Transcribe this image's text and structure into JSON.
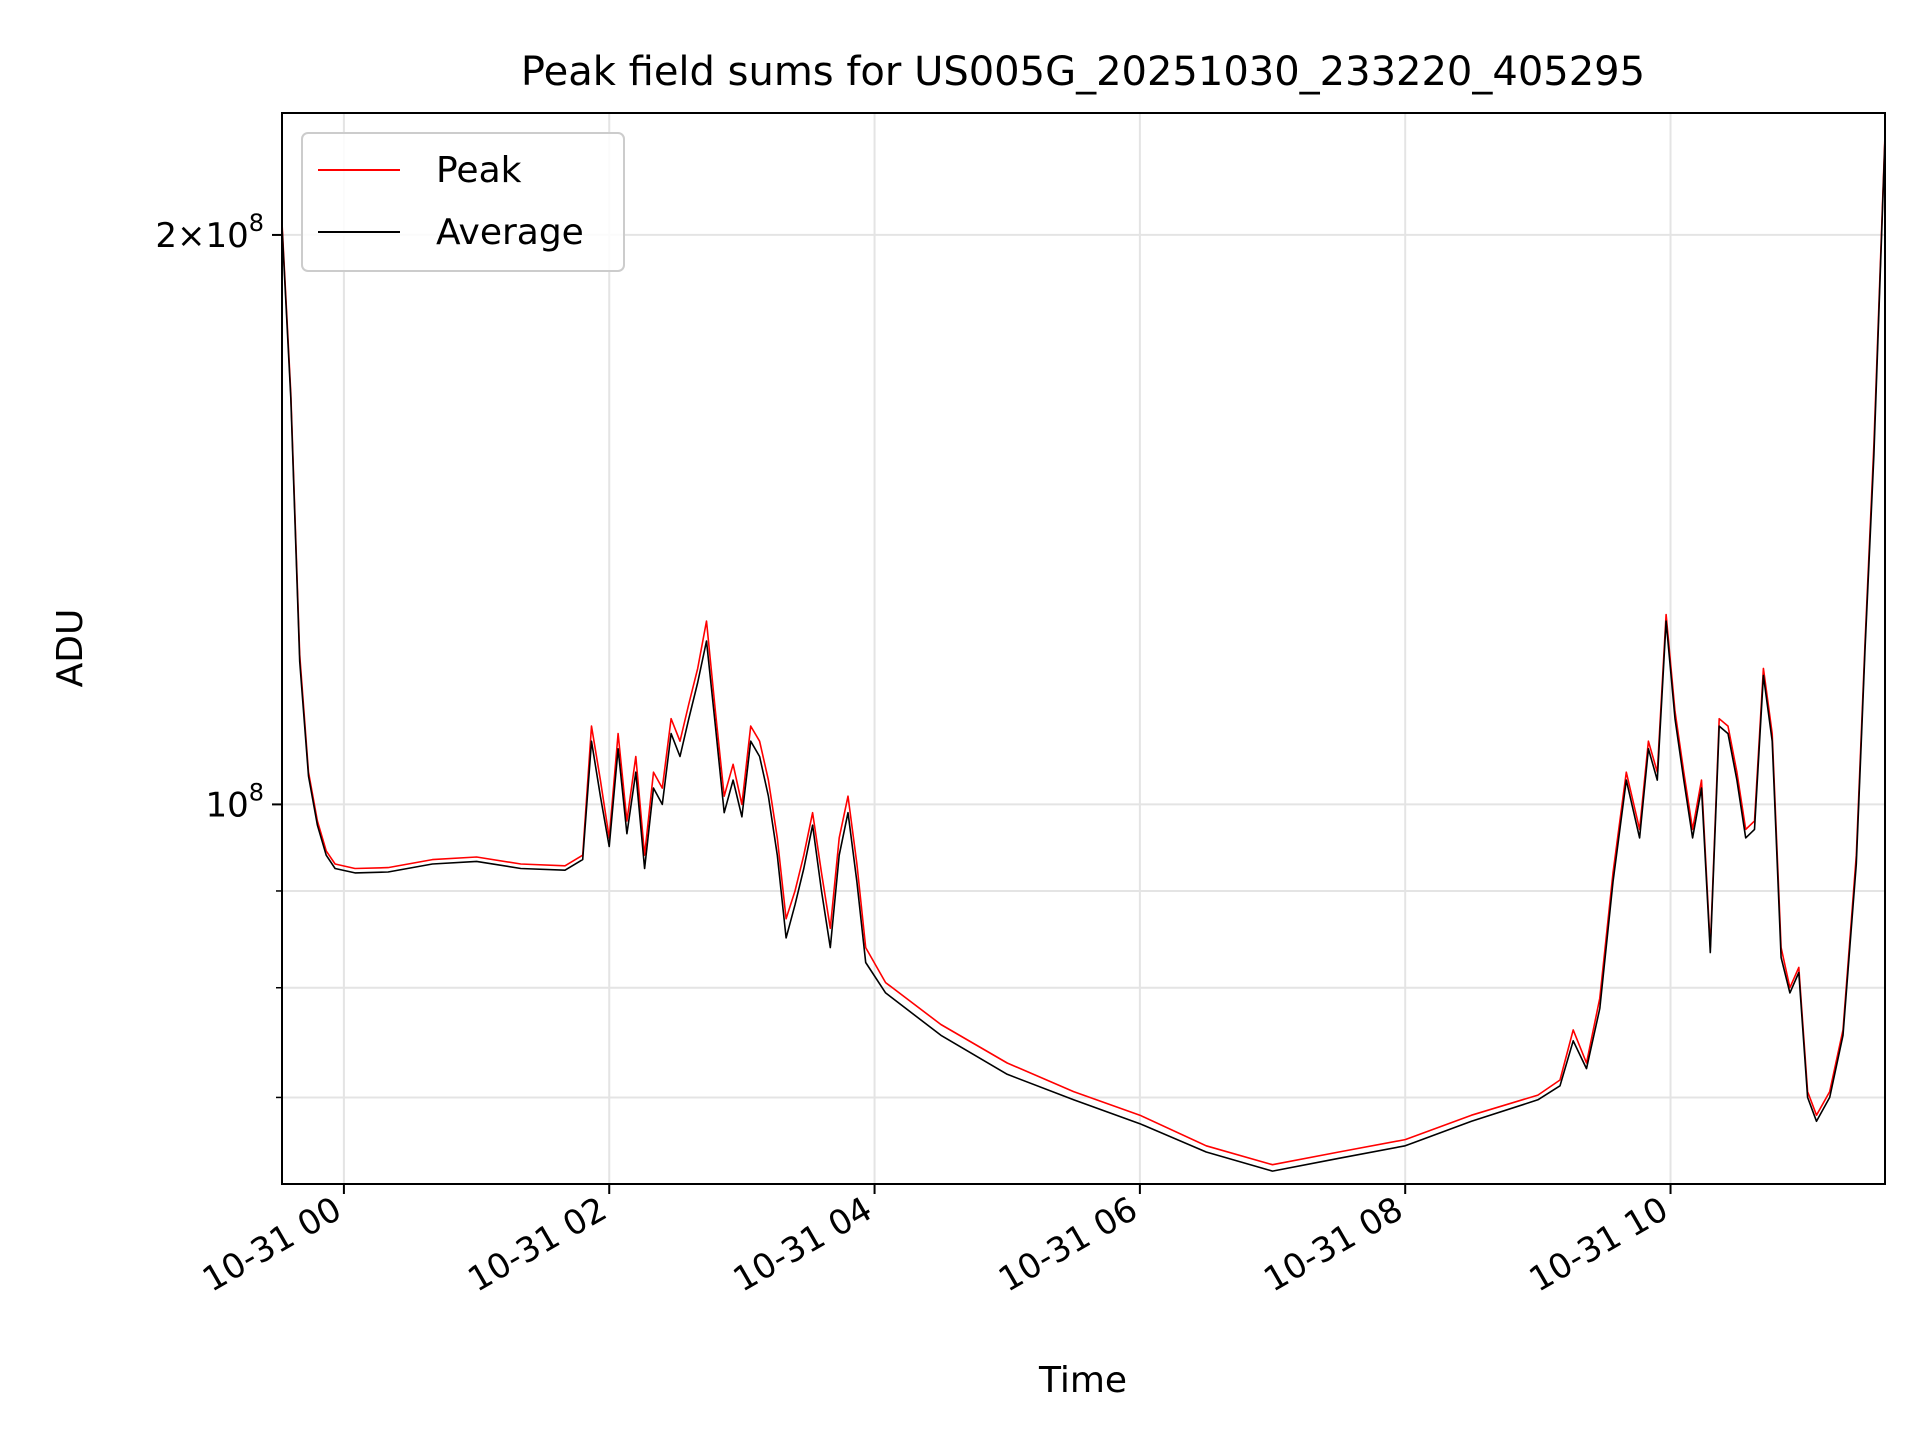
{
  "chart_data": {
    "type": "line",
    "title": "Peak field sums for US005G_20251030_233220_405295",
    "xlabel": "Time",
    "ylabel": "ADU",
    "yscale": "log",
    "xlim": [
      "2025-10-30 23:32",
      "2025-10-31 11:37"
    ],
    "ylim": [
      63000000,
      232000000
    ],
    "grid": true,
    "legend_position": "top-left",
    "x_ticks": [
      {
        "value": "2025-10-31 00:00",
        "label": "10-31 00"
      },
      {
        "value": "2025-10-31 02:00",
        "label": "10-31 02"
      },
      {
        "value": "2025-10-31 04:00",
        "label": "10-31 04"
      },
      {
        "value": "2025-10-31 06:00",
        "label": "10-31 06"
      },
      {
        "value": "2025-10-31 08:00",
        "label": "10-31 08"
      },
      {
        "value": "2025-10-31 10:00",
        "label": "10-31 10"
      }
    ],
    "y_major_ticks": [
      {
        "value": 100000000,
        "base": "10",
        "exp": "8",
        "mantissa": ""
      },
      {
        "value": 200000000,
        "base": "10",
        "exp": "8",
        "mantissa": "2×"
      }
    ],
    "y_minor_ticks": [
      70000000,
      80000000,
      90000000
    ],
    "x": [
      "2025-10-30 23:32",
      "2025-10-30 23:36",
      "2025-10-30 23:40",
      "2025-10-30 23:44",
      "2025-10-30 23:48",
      "2025-10-30 23:52",
      "2025-10-30 23:56",
      "2025-10-31 00:05",
      "2025-10-31 00:20",
      "2025-10-31 00:40",
      "2025-10-31 01:00",
      "2025-10-31 01:20",
      "2025-10-31 01:40",
      "2025-10-31 01:48",
      "2025-10-31 01:52",
      "2025-10-31 01:56",
      "2025-10-31 02:00",
      "2025-10-31 02:04",
      "2025-10-31 02:08",
      "2025-10-31 02:12",
      "2025-10-31 02:16",
      "2025-10-31 02:20",
      "2025-10-31 02:24",
      "2025-10-31 02:28",
      "2025-10-31 02:32",
      "2025-10-31 02:36",
      "2025-10-31 02:40",
      "2025-10-31 02:44",
      "2025-10-31 02:48",
      "2025-10-31 02:52",
      "2025-10-31 02:56",
      "2025-10-31 03:00",
      "2025-10-31 03:04",
      "2025-10-31 03:08",
      "2025-10-31 03:12",
      "2025-10-31 03:16",
      "2025-10-31 03:20",
      "2025-10-31 03:24",
      "2025-10-31 03:28",
      "2025-10-31 03:32",
      "2025-10-31 03:36",
      "2025-10-31 03:40",
      "2025-10-31 03:44",
      "2025-10-31 03:48",
      "2025-10-31 03:52",
      "2025-10-31 03:56",
      "2025-10-31 04:05",
      "2025-10-31 04:30",
      "2025-10-31 05:00",
      "2025-10-31 05:30",
      "2025-10-31 06:00",
      "2025-10-31 06:30",
      "2025-10-31 07:00",
      "2025-10-31 07:30",
      "2025-10-31 08:00",
      "2025-10-31 08:30",
      "2025-10-31 09:00",
      "2025-10-31 09:10",
      "2025-10-31 09:16",
      "2025-10-31 09:22",
      "2025-10-31 09:28",
      "2025-10-31 09:34",
      "2025-10-31 09:40",
      "2025-10-31 09:46",
      "2025-10-31 09:50",
      "2025-10-31 09:54",
      "2025-10-31 09:58",
      "2025-10-31 10:02",
      "2025-10-31 10:06",
      "2025-10-31 10:10",
      "2025-10-31 10:14",
      "2025-10-31 10:18",
      "2025-10-31 10:22",
      "2025-10-31 10:26",
      "2025-10-31 10:30",
      "2025-10-31 10:34",
      "2025-10-31 10:38",
      "2025-10-31 10:42",
      "2025-10-31 10:46",
      "2025-10-31 10:50",
      "2025-10-31 10:54",
      "2025-10-31 10:58",
      "2025-10-31 11:02",
      "2025-10-31 11:06",
      "2025-10-31 11:12",
      "2025-10-31 11:18",
      "2025-10-31 11:24",
      "2025-10-31 11:28",
      "2025-10-31 11:32",
      "2025-10-31 11:37"
    ],
    "series": [
      {
        "name": "Peak",
        "color": "#ff0000",
        "values": [
          203000000,
          165000000,
          120000000,
          104000000,
          98000000,
          94500000,
          93000000,
          92500000,
          92600000,
          93500000,
          93800000,
          93000000,
          92800000,
          94000000,
          110000000,
          103000000,
          96000000,
          109000000,
          98000000,
          106000000,
          94000000,
          104000000,
          102000000,
          111000000,
          108000000,
          113000000,
          118000000,
          125000000,
          112000000,
          101000000,
          105000000,
          100000000,
          110000000,
          108000000,
          103000000,
          96000000,
          87000000,
          90000000,
          94000000,
          99000000,
          92000000,
          86000000,
          96000000,
          101000000,
          93000000,
          84000000,
          80500000,
          76500000,
          73000000,
          70500000,
          68500000,
          66000000,
          64500000,
          65500000,
          66500000,
          68500000,
          70200000,
          71500000,
          76000000,
          73000000,
          79000000,
          92000000,
          104000000,
          97000000,
          108000000,
          104000000,
          126000000,
          112000000,
          104000000,
          97000000,
          103000000,
          84000000,
          111000000,
          110000000,
          104000000,
          97000000,
          98000000,
          118000000,
          109000000,
          84000000,
          80000000,
          82000000,
          70500000,
          68500000,
          70500000,
          76000000,
          94000000,
          122000000,
          155000000,
          226000000
        ]
      },
      {
        "name": "Average",
        "color": "#000000",
        "values": [
          202000000,
          164000000,
          119000000,
          103500000,
          97500000,
          94000000,
          92500000,
          92000000,
          92100000,
          93000000,
          93300000,
          92500000,
          92300000,
          93500000,
          108000000,
          101000000,
          95000000,
          107000000,
          96500000,
          104000000,
          92500000,
          102000000,
          100000000,
          109000000,
          106000000,
          111000000,
          116000000,
          122000000,
          110000000,
          99000000,
          103000000,
          98500000,
          108000000,
          106000000,
          101000000,
          94000000,
          85000000,
          88500000,
          92500000,
          97500000,
          90000000,
          84000000,
          94000000,
          99000000,
          91000000,
          82500000,
          79500000,
          75500000,
          72000000,
          69800000,
          67800000,
          65500000,
          64000000,
          65000000,
          66000000,
          68000000,
          69800000,
          71000000,
          75000000,
          72500000,
          78000000,
          91000000,
          103000000,
          96000000,
          107000000,
          103000000,
          125000000,
          111000000,
          103000000,
          96000000,
          102000000,
          83500000,
          110000000,
          109000000,
          103000000,
          96000000,
          97000000,
          117000000,
          108000000,
          83000000,
          79500000,
          81500000,
          70000000,
          68000000,
          70000000,
          75500000,
          93000000,
          121000000,
          153000000,
          225000000
        ]
      }
    ]
  }
}
